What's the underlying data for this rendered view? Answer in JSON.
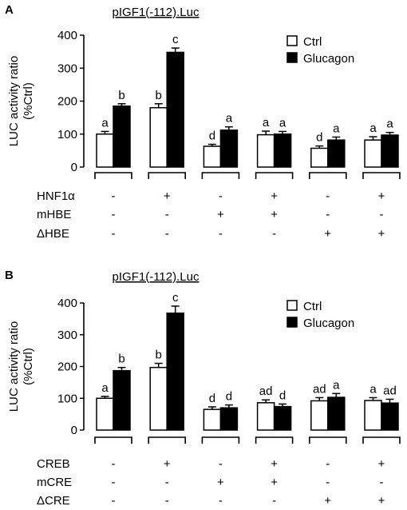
{
  "colors": {
    "ctrl": "#ffffff",
    "glucagon": "#000000",
    "stroke": "#000000"
  },
  "chart_data": [
    {
      "type": "bar",
      "panel": "A",
      "title": "pIGF1(-112).Luc",
      "ylabel_line1": "LUC activity ratio",
      "ylabel_line2": "(%Ctrl)",
      "ylim": [
        0,
        400
      ],
      "yticks": [
        "0",
        "100",
        "200",
        "300",
        "400"
      ],
      "legend": [
        "Ctrl",
        "Glucagon"
      ],
      "legend_position": "top-right",
      "grid": false,
      "groups": 6,
      "series": [
        {
          "name": "Ctrl",
          "values": [
            100,
            180,
            63,
            98,
            57,
            82
          ],
          "errors": [
            8,
            12,
            6,
            11,
            7,
            10
          ],
          "labels": [
            "a",
            "b",
            "d",
            "a",
            "d",
            "a"
          ]
        },
        {
          "name": "Glucagon",
          "values": [
            185,
            348,
            112,
            100,
            82,
            97
          ],
          "errors": [
            7,
            13,
            10,
            8,
            9,
            8
          ],
          "labels": [
            "b",
            "c",
            "a",
            "a",
            "a",
            "a"
          ]
        }
      ],
      "factors": [
        {
          "name": "HNF1α",
          "values": [
            "-",
            "+",
            "-",
            "+",
            "-",
            "+"
          ]
        },
        {
          "name": "mHBE",
          "values": [
            "-",
            "-",
            "+",
            "+",
            "-",
            "-"
          ]
        },
        {
          "name": "ΔHBE",
          "values": [
            "-",
            "-",
            "-",
            "-",
            "+",
            "+"
          ]
        }
      ]
    },
    {
      "type": "bar",
      "panel": "B",
      "title": "pIGF1(-112).Luc",
      "ylabel_line1": "LUC activity ratio",
      "ylabel_line2": "(%Ctrl)",
      "ylim": [
        0,
        400
      ],
      "yticks": [
        "0",
        "100",
        "200",
        "300",
        "400"
      ],
      "legend": [
        "Ctrl",
        "Glucagon"
      ],
      "legend_position": "top-right",
      "grid": false,
      "groups": 6,
      "series": [
        {
          "name": "Ctrl",
          "values": [
            100,
            197,
            65,
            86,
            92,
            93
          ],
          "errors": [
            6,
            13,
            8,
            9,
            10,
            9
          ],
          "labels": [
            "a",
            "b",
            "d",
            "ad",
            "ad",
            "a"
          ]
        },
        {
          "name": "Glucagon",
          "values": [
            187,
            368,
            70,
            74,
            103,
            85
          ],
          "errors": [
            10,
            22,
            9,
            8,
            12,
            12
          ],
          "labels": [
            "b",
            "c",
            "d",
            "d",
            "a",
            "ad"
          ]
        }
      ],
      "factors": [
        {
          "name": "CREB",
          "values": [
            "-",
            "+",
            "-",
            "+",
            "-",
            "+"
          ]
        },
        {
          "name": "mCRE",
          "values": [
            "-",
            "-",
            "+",
            "+",
            "-",
            "-"
          ]
        },
        {
          "name": "ΔCRE",
          "values": [
            "-",
            "-",
            "-",
            "-",
            "+",
            "+"
          ]
        }
      ]
    }
  ]
}
